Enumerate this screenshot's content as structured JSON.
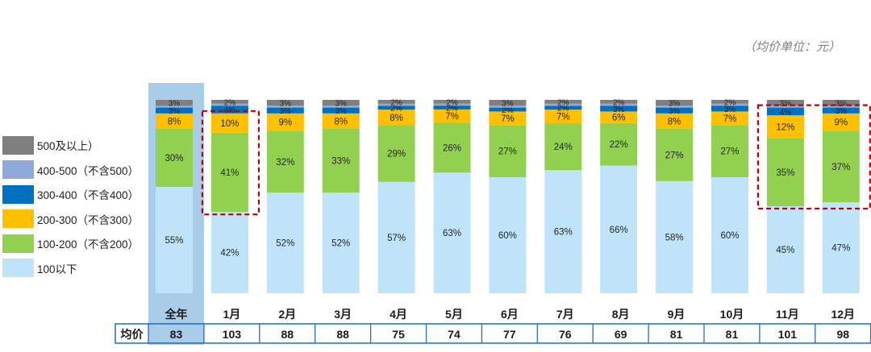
{
  "unit_note": "（均价单位：元）",
  "price_row_label": "均价",
  "legend": [
    {
      "label": "500及以上）",
      "color": "#7f7f7f"
    },
    {
      "label": "400-500（不含500）",
      "color": "#8eaadb"
    },
    {
      "label": "300-400（不含400）",
      "color": "#0070c0"
    },
    {
      "label": "200-300（不含300）",
      "color": "#ffc000"
    },
    {
      "label": "100-200（不含200）",
      "color": "#92d050"
    },
    {
      "label": "100以下",
      "color": "#bfe3f8"
    }
  ],
  "chart_data": {
    "type": "bar",
    "stacked": true,
    "percent": true,
    "categories": [
      "全年",
      "1月",
      "2月",
      "3月",
      "4月",
      "5月",
      "6月",
      "7月",
      "8月",
      "9月",
      "10月",
      "11月",
      "12月"
    ],
    "series": [
      {
        "name": "100以下",
        "color": "#bfe3f8",
        "values": [
          55,
          42,
          52,
          52,
          57,
          63,
          60,
          63,
          66,
          58,
          60,
          45,
          47
        ]
      },
      {
        "name": "100-200（不含200）",
        "color": "#92d050",
        "values": [
          30,
          41,
          32,
          33,
          29,
          26,
          27,
          24,
          22,
          27,
          27,
          35,
          37
        ]
      },
      {
        "name": "200-300（不含300）",
        "color": "#ffc000",
        "values": [
          8,
          10,
          9,
          8,
          8,
          7,
          7,
          7,
          6,
          8,
          7,
          12,
          9
        ]
      },
      {
        "name": "300-400（不含400）",
        "color": "#0070c0",
        "values": [
          3,
          4,
          3,
          3,
          2,
          2,
          2,
          2,
          3,
          3,
          3,
          4,
          3
        ]
      },
      {
        "name": "400-500（不含500）",
        "color": "#8eaadb",
        "values": [
          1,
          1,
          1,
          1,
          1,
          1,
          1,
          1,
          1,
          1,
          1,
          1,
          1
        ]
      },
      {
        "name": "500及以上）",
        "color": "#7f7f7f",
        "values": [
          3,
          2,
          3,
          3,
          2,
          2,
          3,
          2,
          2,
          3,
          2,
          3,
          3
        ]
      }
    ],
    "unlabeled_segments": [
      [
        0,
        4
      ],
      [
        1,
        4
      ],
      [
        2,
        4
      ],
      [
        3,
        4
      ],
      [
        4,
        4
      ],
      [
        5,
        4
      ],
      [
        6,
        4
      ],
      [
        7,
        4
      ],
      [
        8,
        4
      ],
      [
        9,
        4
      ],
      [
        10,
        4
      ],
      [
        11,
        4
      ],
      [
        12,
        4
      ]
    ],
    "avg_price": [
      83,
      103,
      88,
      88,
      75,
      74,
      77,
      76,
      69,
      81,
      81,
      101,
      98
    ],
    "highlighted_columns": [
      0
    ],
    "dashed_boxes": [
      {
        "columns": [
          1
        ],
        "series_from": 1,
        "series_to": 2
      },
      {
        "columns": [
          11,
          12
        ],
        "series_from": 1,
        "series_to": 3
      }
    ]
  }
}
